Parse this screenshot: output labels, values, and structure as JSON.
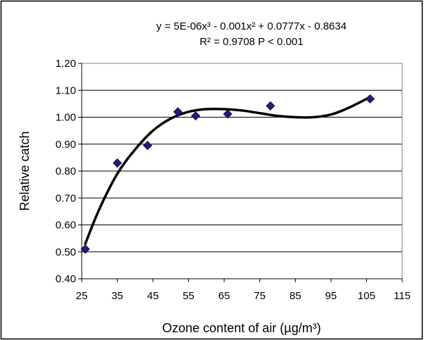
{
  "chart_data": {
    "type": "scatter",
    "xlabel": "Ozone content of air (µg/m³)",
    "ylabel": "Relative catch",
    "xlim": [
      25,
      115
    ],
    "ylim": [
      0.4,
      1.2
    ],
    "x_ticks": [
      "25",
      "35",
      "45",
      "55",
      "65",
      "75",
      "85",
      "95",
      "105",
      "115"
    ],
    "y_ticks": [
      "0.40",
      "0.50",
      "0.60",
      "0.70",
      "0.80",
      "0.90",
      "1.00",
      "1.10",
      "1.20"
    ],
    "grid": "horizontal",
    "series": [
      {
        "marker": "diamond",
        "color": "#1f1f7a",
        "points": [
          {
            "x": 26,
            "y": 0.51
          },
          {
            "x": 35,
            "y": 0.83
          },
          {
            "x": 43.5,
            "y": 0.895
          },
          {
            "x": 52,
            "y": 1.02
          },
          {
            "x": 57,
            "y": 1.005
          },
          {
            "x": 66,
            "y": 1.012
          },
          {
            "x": 78,
            "y": 1.042
          },
          {
            "x": 106,
            "y": 1.068
          }
        ]
      }
    ],
    "trendline": {
      "type": "polynomial",
      "color": "#000000",
      "x_from": 26,
      "x_to": 106,
      "points": [
        {
          "x": 26,
          "y": 0.53
        },
        {
          "x": 30,
          "y": 0.66
        },
        {
          "x": 35,
          "y": 0.79
        },
        {
          "x": 40,
          "y": 0.88
        },
        {
          "x": 45,
          "y": 0.95
        },
        {
          "x": 50,
          "y": 0.995
        },
        {
          "x": 55,
          "y": 1.02
        },
        {
          "x": 60,
          "y": 1.03
        },
        {
          "x": 65,
          "y": 1.03
        },
        {
          "x": 70,
          "y": 1.025
        },
        {
          "x": 75,
          "y": 1.015
        },
        {
          "x": 80,
          "y": 1.005
        },
        {
          "x": 85,
          "y": 1.0
        },
        {
          "x": 90,
          "y": 1.0
        },
        {
          "x": 95,
          "y": 1.01
        },
        {
          "x": 100,
          "y": 1.035
        },
        {
          "x": 106,
          "y": 1.075
        }
      ]
    },
    "annotations": {
      "equation": "y = 5E-06x³ - 0.001x² + 0.0777x - 0.8634",
      "stats": "R² = 0.9708  P < 0.001"
    }
  }
}
